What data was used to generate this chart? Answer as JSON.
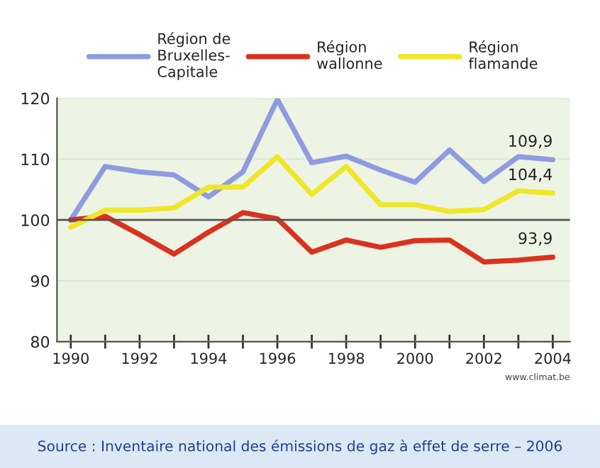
{
  "chart_data": {
    "type": "line",
    "x": [
      1990,
      1991,
      1992,
      1993,
      1994,
      1995,
      1996,
      1997,
      1998,
      1999,
      2000,
      2001,
      2002,
      2003,
      2004
    ],
    "series": [
      {
        "name": "Région de\nBruxelles-\nCapitale",
        "color": "#8f9be0",
        "values": [
          100,
          108.8,
          107.9,
          107.4,
          103.8,
          107.9,
          119.8,
          109.4,
          110.5,
          108.2,
          106.2,
          111.5,
          106.3,
          110.4,
          109.9
        ],
        "value_labels": [
          null,
          null,
          null,
          null,
          null,
          null,
          null,
          null,
          null,
          null,
          null,
          null,
          null,
          null,
          "109,9"
        ]
      },
      {
        "name": "Région\nwallonne",
        "color": "#d9321e",
        "values": [
          100,
          100.6,
          97.6,
          94.4,
          98.0,
          101.2,
          100.2,
          94.7,
          96.7,
          95.5,
          96.6,
          96.7,
          93.1,
          93.4,
          93.9
        ],
        "value_labels": [
          null,
          null,
          null,
          null,
          null,
          null,
          null,
          null,
          null,
          null,
          null,
          null,
          null,
          null,
          "93,9"
        ]
      },
      {
        "name": "Région\nflamande",
        "color": "#f0e62a",
        "values": [
          98.8,
          101.6,
          101.6,
          102.0,
          105.4,
          105.4,
          110.4,
          104.2,
          108.8,
          102.5,
          102.5,
          101.4,
          101.7,
          104.8,
          104.4
        ],
        "value_labels": [
          null,
          null,
          null,
          null,
          null,
          null,
          null,
          null,
          null,
          null,
          null,
          null,
          null,
          null,
          "104,4"
        ]
      }
    ],
    "xlim": [
      1989.6,
      2004.5
    ],
    "ylim": [
      80,
      120
    ],
    "xticks": [
      1990,
      {
        "value": 1991,
        "label": null
      },
      1992,
      {
        "value": 1993,
        "label": null
      },
      1994,
      {
        "value": 1995,
        "label": null
      },
      1996,
      {
        "value": 1997,
        "label": null
      },
      1998,
      {
        "value": 1999,
        "label": null
      },
      2000,
      {
        "value": 2001,
        "label": null
      },
      2002,
      {
        "value": 2003,
        "label": null
      },
      2004
    ],
    "yticks": [
      80,
      90,
      100,
      110,
      120
    ],
    "grid": "y",
    "legend": "top",
    "marker": "none",
    "line_style": "solid",
    "ref_lines": [
      {
        "axis": "y",
        "value": 100,
        "color": "#555555"
      }
    ],
    "annotations": [
      "www.climat.be",
      "Source : Inventaire national des émissions de gaz à effet de serre – 2006"
    ]
  }
}
